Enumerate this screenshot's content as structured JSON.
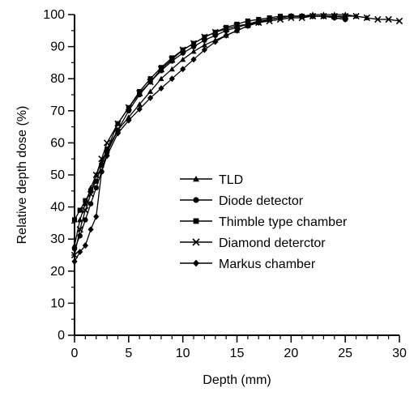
{
  "chart_data": {
    "type": "line",
    "title": "",
    "xlabel": "Depth (mm)",
    "ylabel": "Relative depth dose (%)",
    "xlim": [
      0,
      30
    ],
    "ylim": [
      0,
      100
    ],
    "x_ticks": [
      0,
      5,
      10,
      15,
      20,
      25,
      30
    ],
    "y_ticks": [
      0,
      10,
      20,
      30,
      40,
      50,
      60,
      70,
      80,
      90,
      100
    ],
    "grid": false,
    "legend_position": "center-right",
    "series": [
      {
        "name": "TLD",
        "marker": "triangle",
        "x": [
          0,
          0.5,
          1,
          1.5,
          2,
          2.5,
          3,
          4,
          5,
          6,
          7,
          8,
          9,
          10,
          11,
          12,
          13,
          14,
          15,
          16,
          17,
          18,
          19,
          20,
          21,
          22,
          23,
          24,
          25,
          26,
          27
        ],
        "y": [
          28,
          36,
          41,
          46,
          50,
          54,
          58,
          64,
          68,
          72,
          76,
          80,
          83,
          86,
          88.5,
          90.5,
          92,
          93.5,
          95,
          96.5,
          97.5,
          98.5,
          99,
          99.5,
          99.5,
          100,
          100,
          100,
          100,
          99.5,
          99
        ]
      },
      {
        "name": "Diode detector",
        "marker": "circle",
        "x": [
          0,
          0.5,
          1,
          1.5,
          2,
          2.5,
          3,
          4,
          5,
          6,
          7,
          8,
          9,
          10,
          11,
          12,
          13,
          14,
          15,
          16,
          17,
          18,
          19,
          20,
          21,
          22,
          23,
          24,
          25
        ],
        "y": [
          27,
          31,
          36,
          41,
          46,
          51,
          57,
          64,
          70,
          75,
          79,
          82.5,
          85.5,
          88,
          90,
          92,
          93.5,
          95,
          96,
          97,
          98,
          98.5,
          99,
          99.5,
          99.5,
          99.5,
          99.5,
          99,
          98.5
        ]
      },
      {
        "name": "Thimble type chamber",
        "marker": "square",
        "x": [
          0,
          0.5,
          1,
          1.5,
          2,
          2.5,
          3,
          4,
          5,
          6,
          7,
          8,
          9,
          10,
          11,
          12,
          13,
          14,
          15,
          16,
          17,
          18,
          19,
          20,
          21,
          22,
          23,
          24,
          25
        ],
        "y": [
          36,
          39,
          42,
          45,
          48,
          53,
          58,
          66,
          71,
          76,
          80,
          83.5,
          86.5,
          89,
          91,
          93,
          94.5,
          96,
          97,
          98,
          98.5,
          99,
          99.5,
          99.5,
          99.5,
          99.5,
          99.5,
          99.5,
          99
        ]
      },
      {
        "name": "Diamond deterctor",
        "marker": "x",
        "x": [
          0,
          0.5,
          1,
          1.5,
          2,
          2.5,
          3,
          4,
          5,
          6,
          7,
          8,
          9,
          10,
          11,
          12,
          13,
          14,
          15,
          16,
          17,
          18,
          19,
          20,
          21,
          22,
          23,
          24,
          25,
          26,
          27,
          28,
          29,
          30
        ],
        "y": [
          25,
          33,
          39,
          44,
          50,
          55,
          60,
          66,
          71,
          75.5,
          79,
          83,
          86,
          89,
          91,
          93,
          94.5,
          95.5,
          96.5,
          97,
          97.5,
          98,
          98.5,
          99,
          99,
          99.5,
          99.5,
          99.5,
          99.5,
          99.5,
          99,
          98.5,
          98.5,
          98
        ]
      },
      {
        "name": "Markus chamber",
        "marker": "diamond",
        "x": [
          0,
          0.5,
          1,
          1.5,
          2,
          2.5,
          3,
          4,
          5,
          6,
          7,
          8,
          9,
          10,
          11,
          12,
          13,
          14,
          15,
          16,
          17,
          18,
          19,
          20,
          21,
          22,
          23,
          24,
          25
        ],
        "y": [
          23,
          26,
          28,
          33,
          37,
          51,
          56,
          63,
          67,
          70.5,
          74,
          77,
          80,
          83,
          86,
          89,
          91.5,
          93.5,
          95,
          96.5,
          97.5,
          98.5,
          99,
          99.5,
          99.5,
          99.5,
          99.5,
          99,
          98.5
        ]
      }
    ]
  }
}
